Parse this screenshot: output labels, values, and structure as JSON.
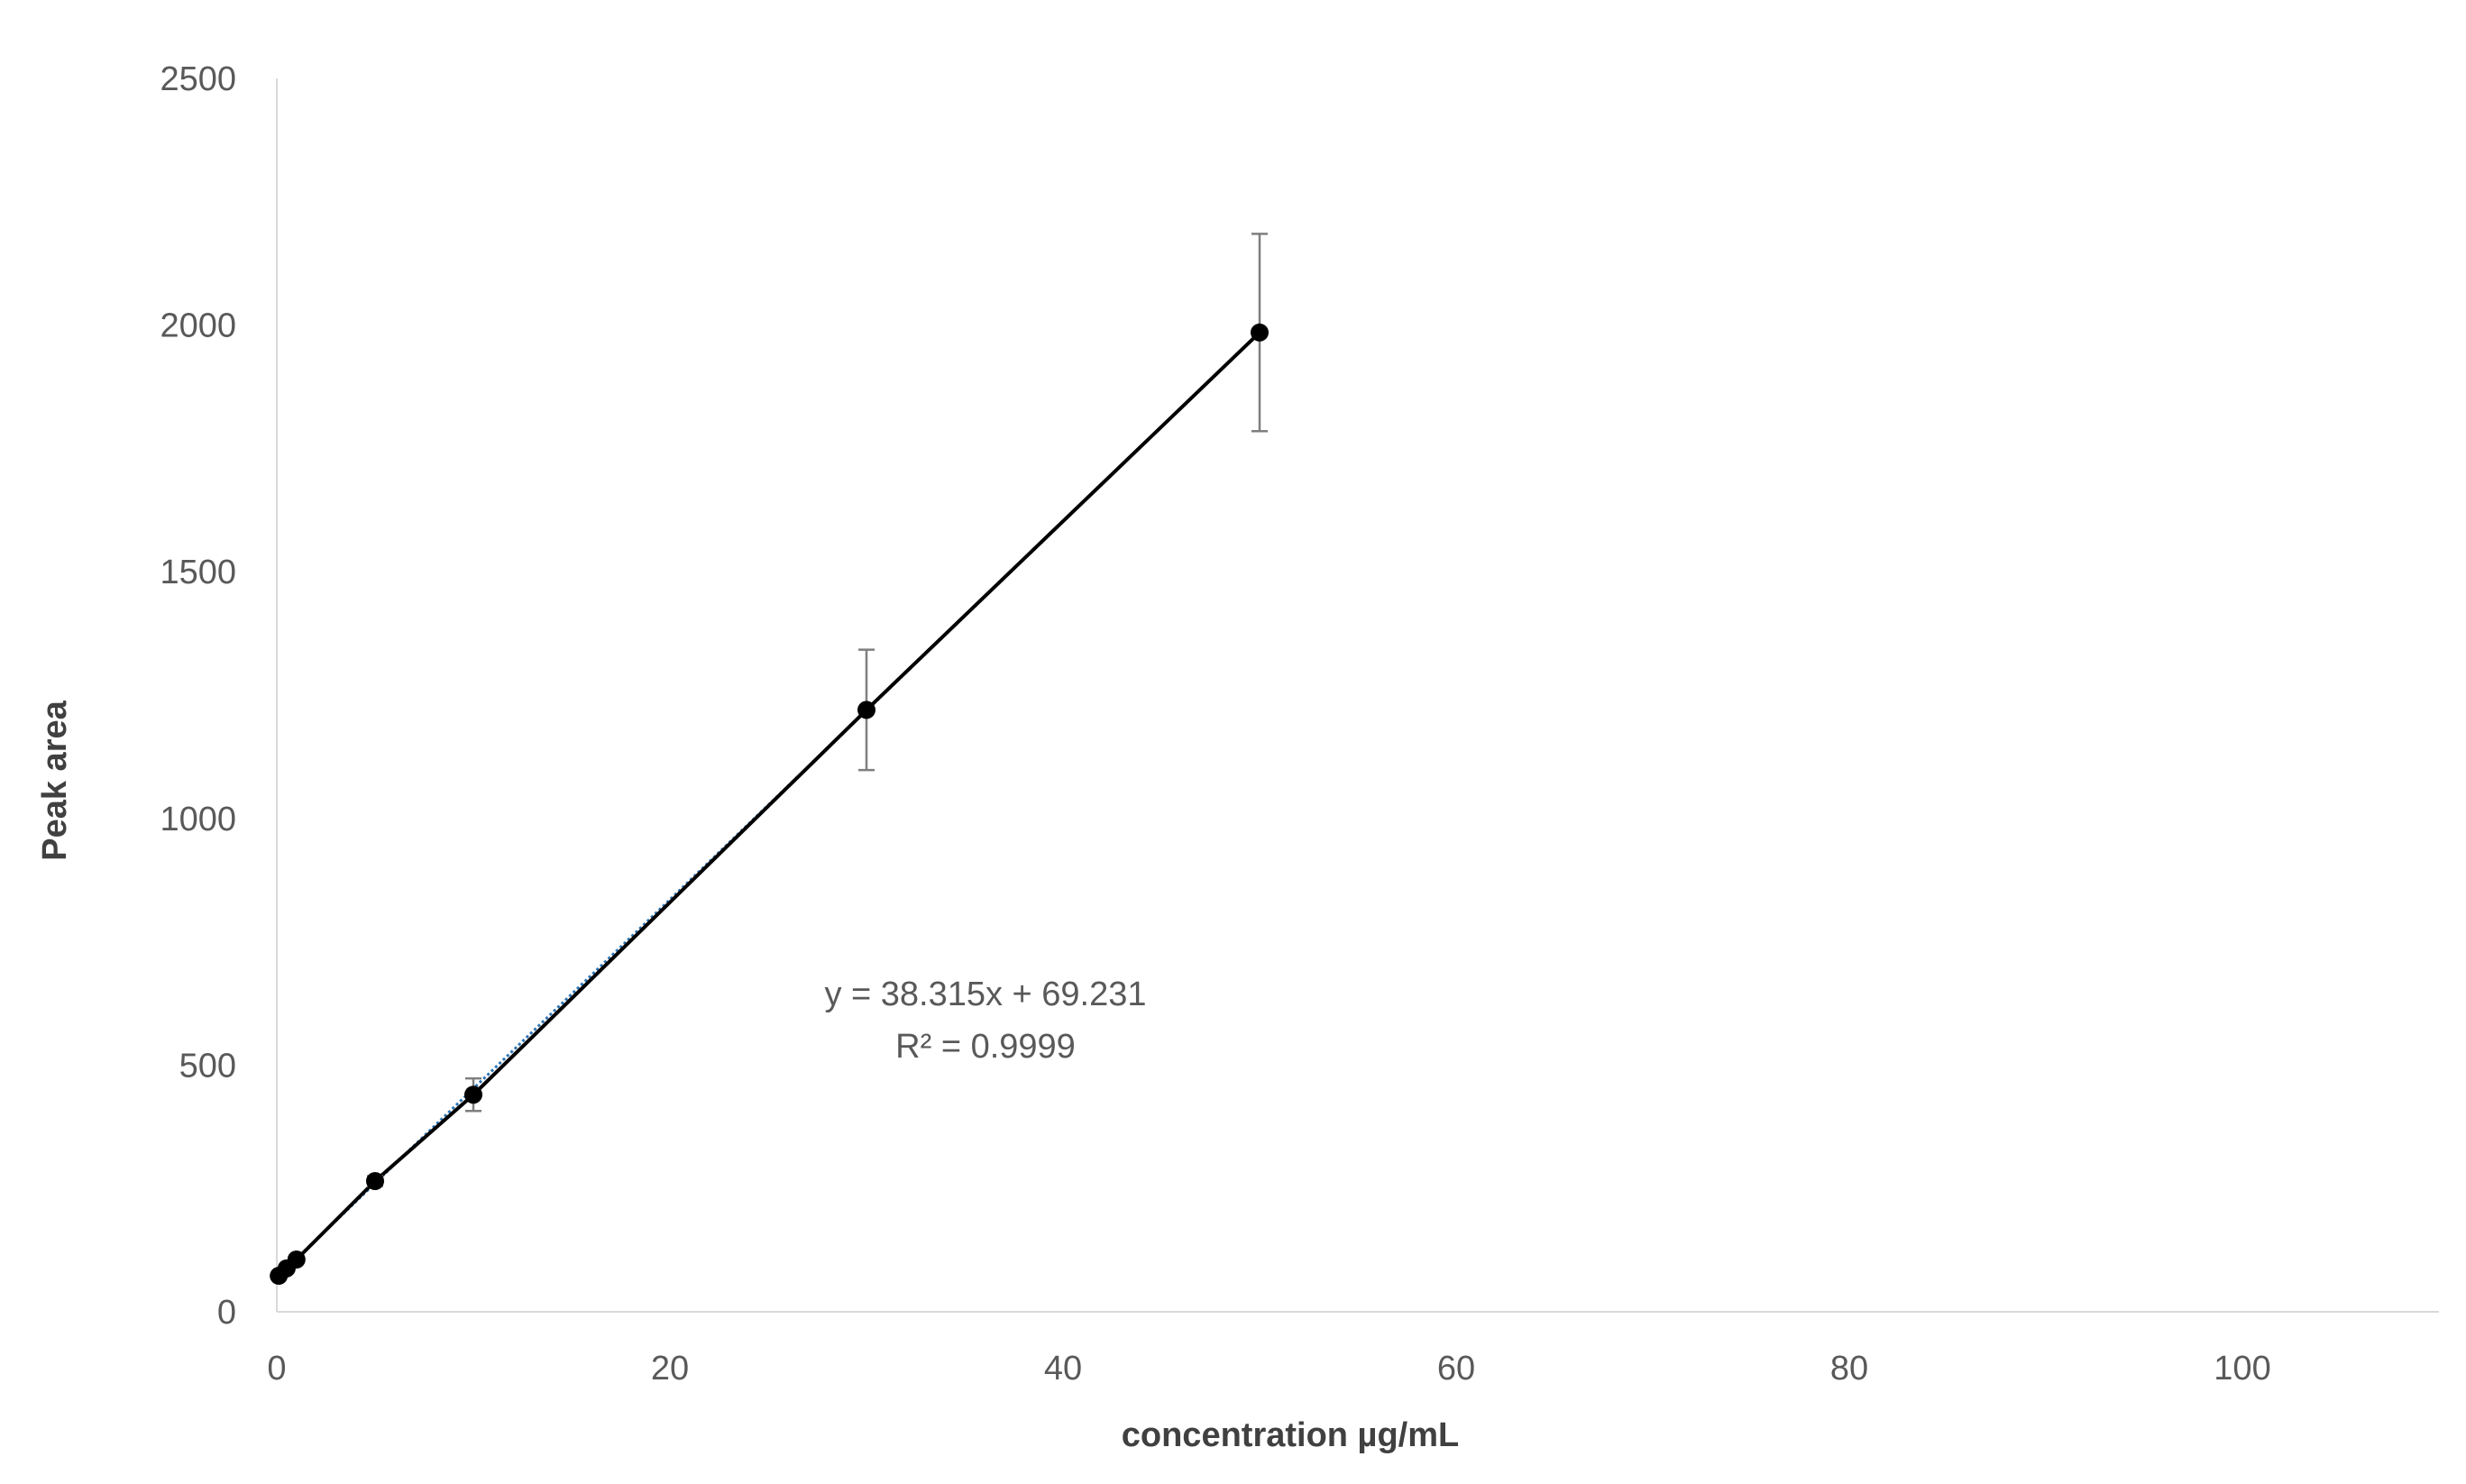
{
  "chart_data": {
    "type": "scatter",
    "title": "",
    "xlabel": "concentration µg/mL",
    "ylabel": "Peak area",
    "xlim": [
      0,
      110
    ],
    "ylim": [
      0,
      2500
    ],
    "x_ticks": [
      0,
      20,
      40,
      60,
      80,
      100
    ],
    "y_ticks": [
      0,
      500,
      1000,
      1500,
      2000,
      2500
    ],
    "grid": false,
    "legend": "none",
    "series": [
      {
        "x": [
          0.1,
          0.5,
          1,
          5,
          10,
          30,
          50
        ],
        "y": [
          73,
          88,
          106,
          265,
          440,
          1220,
          1985
        ],
        "error": [
          4,
          5,
          6,
          10,
          33,
          122,
          200
        ],
        "color": "#000000"
      }
    ],
    "trendline": {
      "slope": 38.315,
      "intercept": 69.231,
      "x_range": [
        0,
        50
      ],
      "color": "#2e75b6"
    },
    "annotations": [
      "y = 38.315x + 69.231",
      "R² = 0.9999"
    ]
  }
}
